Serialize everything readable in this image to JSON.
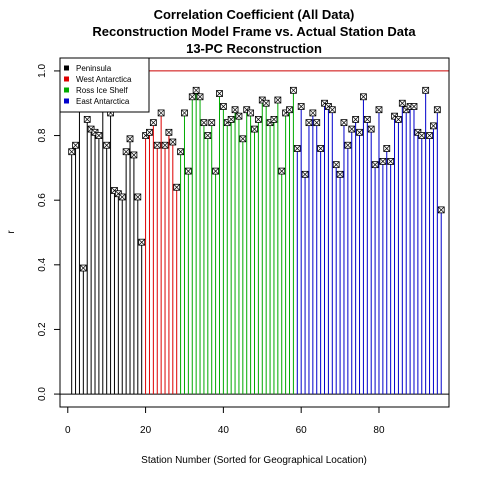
{
  "chart_data": {
    "type": "scatter",
    "title_lines": [
      "Correlation Coefficient (All Data)",
      "Reconstruction Model Frame vs. Actual Station Data",
      "13-PC Reconstruction"
    ],
    "xlabel": "Station Number (Sorted for Geographical Location)",
    "ylabel": "r",
    "xlim": [
      -2,
      98
    ],
    "ylim": [
      -0.04,
      1.04
    ],
    "x_ticks": [
      0,
      20,
      40,
      60,
      80
    ],
    "y_ticks": [
      0.0,
      0.2,
      0.4,
      0.6,
      0.8,
      1.0
    ],
    "x_tick_labels": [
      "0",
      "20",
      "40",
      "60",
      "80"
    ],
    "y_tick_labels": [
      "0.0",
      "0.2",
      "0.4",
      "0.6",
      "0.8",
      "1.0"
    ],
    "reference_line": {
      "y": 1.0,
      "color": "#cc0000"
    },
    "baseline": 0.0,
    "legend": {
      "placement": "top-left",
      "entries": [
        {
          "label": "Peninsula",
          "color": "#000000"
        },
        {
          "label": "West Antarctica",
          "color": "#dd0000"
        },
        {
          "label": "Ross Ice Shelf",
          "color": "#00aa00"
        },
        {
          "label": "East Antarctica",
          "color": "#0000cc"
        }
      ]
    },
    "series": [
      {
        "name": "Peninsula",
        "color": "#000000",
        "x": [
          1,
          2,
          3,
          4,
          5,
          6,
          7,
          8,
          9,
          10,
          11,
          12,
          13,
          14,
          15,
          16,
          17,
          18,
          19
        ],
        "y": [
          0.75,
          0.77,
          0.92,
          0.39,
          0.85,
          0.82,
          0.81,
          0.8,
          0.89,
          0.77,
          0.87,
          0.63,
          0.62,
          0.61,
          0.75,
          0.79,
          0.74,
          0.61,
          0.47
        ]
      },
      {
        "name": "West Antarctica",
        "color": "#dd0000",
        "x": [
          20,
          21,
          22,
          23,
          24,
          25,
          26,
          27,
          28
        ],
        "y": [
          0.8,
          0.81,
          0.84,
          0.77,
          0.87,
          0.77,
          0.81,
          0.78,
          0.64
        ]
      },
      {
        "name": "Ross Ice Shelf",
        "color": "#00aa00",
        "x": [
          29,
          30,
          31,
          32,
          33,
          34,
          35,
          36,
          37,
          38,
          39,
          40,
          41,
          42,
          43,
          44,
          45,
          46,
          47,
          48,
          49,
          50,
          51,
          52,
          53,
          54,
          55,
          56,
          57,
          58
        ],
        "y": [
          0.75,
          0.87,
          0.69,
          0.92,
          0.94,
          0.92,
          0.84,
          0.8,
          0.84,
          0.69,
          0.93,
          0.89,
          0.84,
          0.85,
          0.88,
          0.86,
          0.79,
          0.88,
          0.87,
          0.82,
          0.85,
          0.91,
          0.9,
          0.84,
          0.85,
          0.91,
          0.69,
          0.87,
          0.88,
          0.94
        ]
      },
      {
        "name": "East Antarctica",
        "color": "#0000cc",
        "x": [
          59,
          60,
          61,
          62,
          63,
          64,
          65,
          66,
          67,
          68,
          69,
          70,
          71,
          72,
          73,
          74,
          75,
          76,
          77,
          78,
          79,
          80,
          81,
          82,
          83,
          84,
          85,
          86,
          87,
          88,
          89,
          90,
          91,
          92,
          93,
          94,
          95,
          96
        ],
        "y": [
          0.76,
          0.89,
          0.68,
          0.84,
          0.87,
          0.84,
          0.76,
          0.9,
          0.89,
          0.88,
          0.71,
          0.68,
          0.84,
          0.77,
          0.82,
          0.85,
          0.81,
          0.92,
          0.85,
          0.82,
          0.71,
          0.88,
          0.72,
          0.76,
          0.72,
          0.86,
          0.85,
          0.9,
          0.88,
          0.89,
          0.89,
          0.81,
          0.8,
          0.94,
          0.8,
          0.83,
          0.88,
          0.57
        ]
      }
    ]
  }
}
